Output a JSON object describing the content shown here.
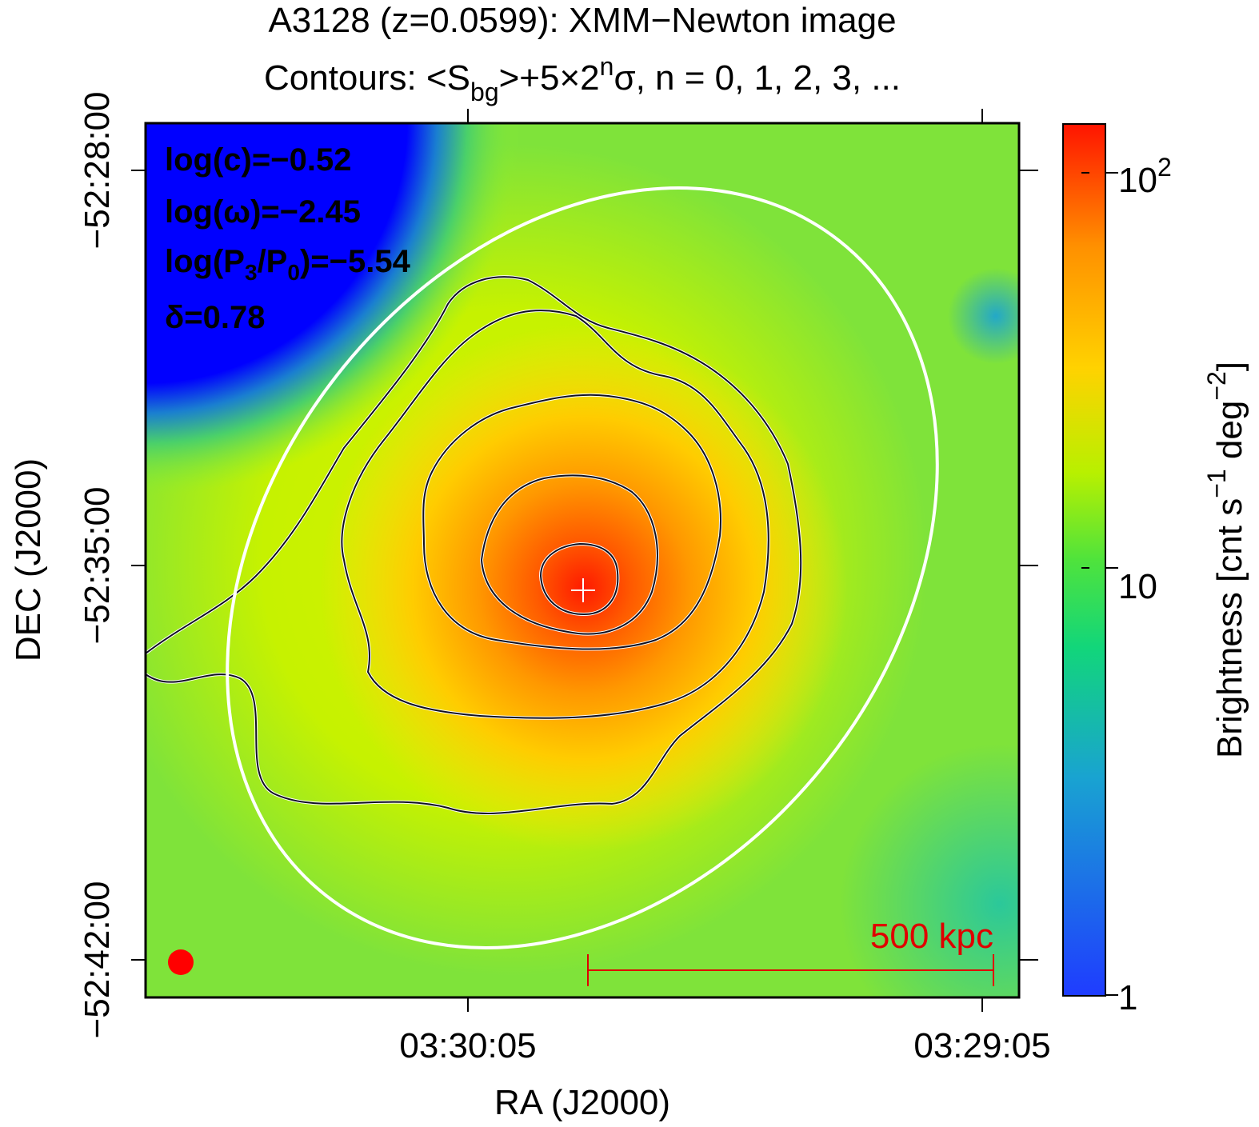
{
  "chart_data": {
    "type": "heatmap",
    "title_line1": "A3128 (z=0.0599): XMM−Newton image",
    "title_line2": {
      "prefix": "Contours: <S",
      "sub": "bg",
      "mid": ">+5×2",
      "sup": "n",
      "suffix": "σ, n = 0, 1, 2, 3, ..."
    },
    "xlabel": "RA (J2000)",
    "ylabel": "DEC (J2000)",
    "x_ticks": [
      "03:30:05",
      "03:29:05"
    ],
    "y_ticks": [
      "−52:28:00",
      "−52:35:00",
      "−52:42:00"
    ],
    "colorbar": {
      "label": "Brightness [cnt s⁻¹ deg⁻²]",
      "label_parts": {
        "a": "Brightness [cnt s",
        "sup1": "−1",
        "b": " deg",
        "sup2": "−2",
        "c": "]"
      },
      "scale": "log",
      "range": [
        1,
        130
      ],
      "ticks": [
        {
          "value": 1,
          "label": "1"
        },
        {
          "value": 10,
          "label": "10"
        },
        {
          "value": 100,
          "label": "10",
          "sup": "2"
        }
      ],
      "colors": [
        "#1f3cff",
        "#19a3d1",
        "#12d67a",
        "#7dee2a",
        "#cdf200",
        "#ffd200",
        "#ff9500",
        "#ff1400"
      ]
    },
    "annotations": {
      "log_c": "log(c)=−0.52",
      "log_omega": "log(ω)=−2.45",
      "log_p": {
        "prefix": "log(P",
        "sub1": "3",
        "mid": "/P",
        "sub2": "0",
        "suffix": ")=−5.54"
      },
      "delta": "δ=0.78"
    },
    "scale_bar_label": "500 kpc",
    "contour_levels": 5,
    "peak_marker": "+"
  }
}
